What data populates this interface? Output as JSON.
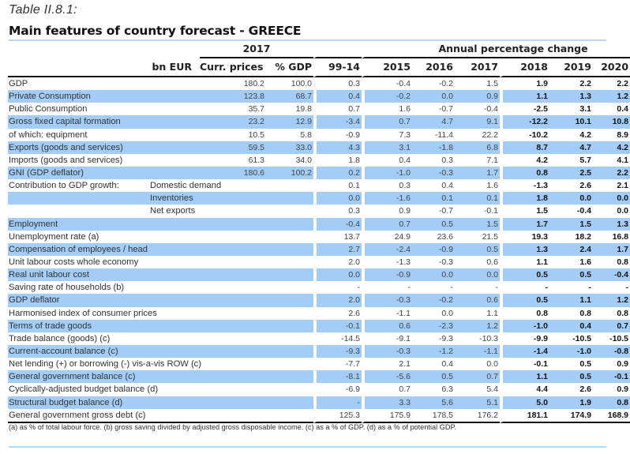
{
  "caption": "Table II.8.1:",
  "title": "Main features of country forecast - GREECE",
  "header": {
    "group_2017": "2017",
    "group_annual": "Annual percentage change",
    "columns": [
      "bn EUR",
      "Curr. prices",
      "% GDP",
      "99-14",
      "2015",
      "2016",
      "2017",
      "2018",
      "2019",
      "2020"
    ]
  },
  "rows": [
    {
      "label": "GDP",
      "sub": "",
      "bn": "180.2",
      "gdp": "100.0",
      "v": [
        "0.3",
        "-0.4",
        "-0.2",
        "1.5"
      ],
      "f": [
        "1.9",
        "2.2",
        "2.2"
      ],
      "shaded": false
    },
    {
      "label": "Private Consumption",
      "sub": "",
      "bn": "123.8",
      "gdp": "68.7",
      "v": [
        "0.4",
        "-0.2",
        "0.0",
        "0.9"
      ],
      "f": [
        "1.1",
        "1.3",
        "1.2"
      ],
      "shaded": true
    },
    {
      "label": "Public Consumption",
      "sub": "",
      "bn": "35.7",
      "gdp": "19.8",
      "v": [
        "0.7",
        "1.6",
        "-0.7",
        "-0.4"
      ],
      "f": [
        "-2.5",
        "3.1",
        "0.4"
      ],
      "shaded": false
    },
    {
      "label": "Gross fixed capital formation",
      "sub": "",
      "bn": "23.2",
      "gdp": "12.9",
      "v": [
        "-3.4",
        "0.7",
        "4.7",
        "9.1"
      ],
      "f": [
        "-12.2",
        "10.1",
        "10.8"
      ],
      "shaded": true
    },
    {
      "label": "of which: equipment",
      "sub": "",
      "bn": "10.5",
      "gdp": "5.8",
      "v": [
        "-0.9",
        "7.3",
        "-11.4",
        "22.2"
      ],
      "f": [
        "-10.2",
        "4.2",
        "8.9"
      ],
      "shaded": false
    },
    {
      "label": "Exports (goods and services)",
      "sub": "",
      "bn": "59.5",
      "gdp": "33.0",
      "v": [
        "4.3",
        "3.1",
        "-1.8",
        "6.8"
      ],
      "f": [
        "8.7",
        "4.7",
        "4.2"
      ],
      "shaded": true
    },
    {
      "label": "Imports (goods and services)",
      "sub": "",
      "bn": "61.3",
      "gdp": "34.0",
      "v": [
        "1.8",
        "0.4",
        "0.3",
        "7.1"
      ],
      "f": [
        "4.2",
        "5.7",
        "4.1"
      ],
      "shaded": false
    },
    {
      "label": "GNI (GDP deflator)",
      "sub": "",
      "bn": "180.6",
      "gdp": "100.2",
      "v": [
        "0.2",
        "-1.0",
        "-0.3",
        "1.7"
      ],
      "f": [
        "0.8",
        "2.5",
        "2.2"
      ],
      "shaded": true
    },
    {
      "label": "Contribution to GDP growth:",
      "sub": "Domestic demand",
      "bn": "",
      "gdp": "",
      "v": [
        "0.1",
        "0.3",
        "0.4",
        "1.6"
      ],
      "f": [
        "-1.3",
        "2.6",
        "2.1"
      ],
      "shaded": false
    },
    {
      "label": "",
      "sub": "Inventories",
      "bn": "",
      "gdp": "",
      "v": [
        "0.0",
        "-1.6",
        "0.1",
        "0.1"
      ],
      "f": [
        "1.8",
        "0.0",
        "0.0"
      ],
      "shaded": true
    },
    {
      "label": "",
      "sub": "Net exports",
      "bn": "",
      "gdp": "",
      "v": [
        "0.3",
        "0.9",
        "-0.7",
        "-0.1"
      ],
      "f": [
        "1.5",
        "-0.4",
        "0.0"
      ],
      "shaded": false
    },
    {
      "label": "Employment",
      "sub": "",
      "bn": "",
      "gdp": "",
      "v": [
        "-0.4",
        "0.7",
        "0.5",
        "1.5"
      ],
      "f": [
        "1.7",
        "1.5",
        "1.3"
      ],
      "shaded": true
    },
    {
      "label": "Unemployment rate (a)",
      "sub": "",
      "bn": "",
      "gdp": "",
      "v": [
        "13.7",
        "24.9",
        "23.6",
        "21.5"
      ],
      "f": [
        "19.3",
        "18.2",
        "16.8"
      ],
      "shaded": false
    },
    {
      "label": "Compensation of employees / head",
      "sub": "",
      "bn": "",
      "gdp": "",
      "v": [
        "2.7",
        "-2.4",
        "-0.9",
        "0.5"
      ],
      "f": [
        "1.3",
        "2.4",
        "1.7"
      ],
      "shaded": true
    },
    {
      "label": "Unit labour costs whole economy",
      "sub": "",
      "bn": "",
      "gdp": "",
      "v": [
        "2.0",
        "-1.3",
        "-0.3",
        "0.6"
      ],
      "f": [
        "1.1",
        "1.6",
        "0.8"
      ],
      "shaded": false
    },
    {
      "label": "Real unit labour cost",
      "sub": "",
      "bn": "",
      "gdp": "",
      "v": [
        "0.0",
        "-0.9",
        "0.0",
        "0.0"
      ],
      "f": [
        "0.5",
        "0.5",
        "-0.4"
      ],
      "shaded": true
    },
    {
      "label": "Saving rate of households (b)",
      "sub": "",
      "bn": "",
      "gdp": "",
      "v": [
        "-",
        "-",
        "-",
        "-"
      ],
      "f": [
        "-",
        "-",
        "-"
      ],
      "shaded": false
    },
    {
      "label": "GDP deflator",
      "sub": "",
      "bn": "",
      "gdp": "",
      "v": [
        "2.0",
        "-0.3",
        "-0.2",
        "0.6"
      ],
      "f": [
        "0.5",
        "1.1",
        "1.2"
      ],
      "shaded": true
    },
    {
      "label": "Harmonised index of consumer prices",
      "sub": "",
      "bn": "",
      "gdp": "",
      "v": [
        "2.6",
        "-1.1",
        "0.0",
        "1.1"
      ],
      "f": [
        "0.8",
        "0.8",
        "0.8"
      ],
      "shaded": false
    },
    {
      "label": "Terms of trade goods",
      "sub": "",
      "bn": "",
      "gdp": "",
      "v": [
        "-0.1",
        "0.6",
        "-2.3",
        "1.2"
      ],
      "f": [
        "-1.0",
        "0.4",
        "0.7"
      ],
      "shaded": true
    },
    {
      "label": "Trade balance (goods) (c)",
      "sub": "",
      "bn": "",
      "gdp": "",
      "v": [
        "-14.5",
        "-9.1",
        "-9.3",
        "-10.3"
      ],
      "f": [
        "-9.9",
        "-10.5",
        "-10.5"
      ],
      "shaded": false
    },
    {
      "label": "Current-account balance (c)",
      "sub": "",
      "bn": "",
      "gdp": "",
      "v": [
        "-9.3",
        "-0.3",
        "-1.2",
        "-1.1"
      ],
      "f": [
        "-1.4",
        "-1.0",
        "-0.8"
      ],
      "shaded": true
    },
    {
      "label": "Net lending (+) or borrowing (-) vis-a-vis ROW (c)",
      "sub": "",
      "bn": "",
      "gdp": "",
      "v": [
        "-7.7",
        "2.1",
        "0.4",
        "0.0"
      ],
      "f": [
        "-0.1",
        "0.5",
        "0.9"
      ],
      "shaded": false
    },
    {
      "label": "General government balance (c)",
      "sub": "",
      "bn": "",
      "gdp": "",
      "v": [
        "-8.1",
        "-5.6",
        "0.5",
        "0.7"
      ],
      "f": [
        "1.1",
        "0.5",
        "-0.1"
      ],
      "shaded": true
    },
    {
      "label": "Cyclically-adjusted budget balance (d)",
      "sub": "",
      "bn": "",
      "gdp": "",
      "v": [
        "-6.9",
        "0.7",
        "6.3",
        "5.4"
      ],
      "f": [
        "4.4",
        "2.6",
        "0.9"
      ],
      "shaded": false
    },
    {
      "label": "Structural budget balance (d)",
      "sub": "",
      "bn": "",
      "gdp": "",
      "v": [
        "-",
        "3.3",
        "5.6",
        "5.1"
      ],
      "f": [
        "5.0",
        "1.9",
        "0.8"
      ],
      "shaded": true
    },
    {
      "label": "General government gross debt (c)",
      "sub": "",
      "bn": "",
      "gdp": "",
      "v": [
        "125.3",
        "175.9",
        "178.5",
        "176.2"
      ],
      "f": [
        "181.1",
        "174.9",
        "168.9"
      ],
      "shaded": false
    }
  ],
  "footnote": "(a) as % of total labour force. (b) gross saving divided by adjusted gross disposable income.  (c) as a % of  GDP. (d) as a % of  potential GDP.",
  "colors": {
    "row_shade": "#a3cdf7",
    "title_rule": "#b9d7f0",
    "rule": "#111111"
  }
}
